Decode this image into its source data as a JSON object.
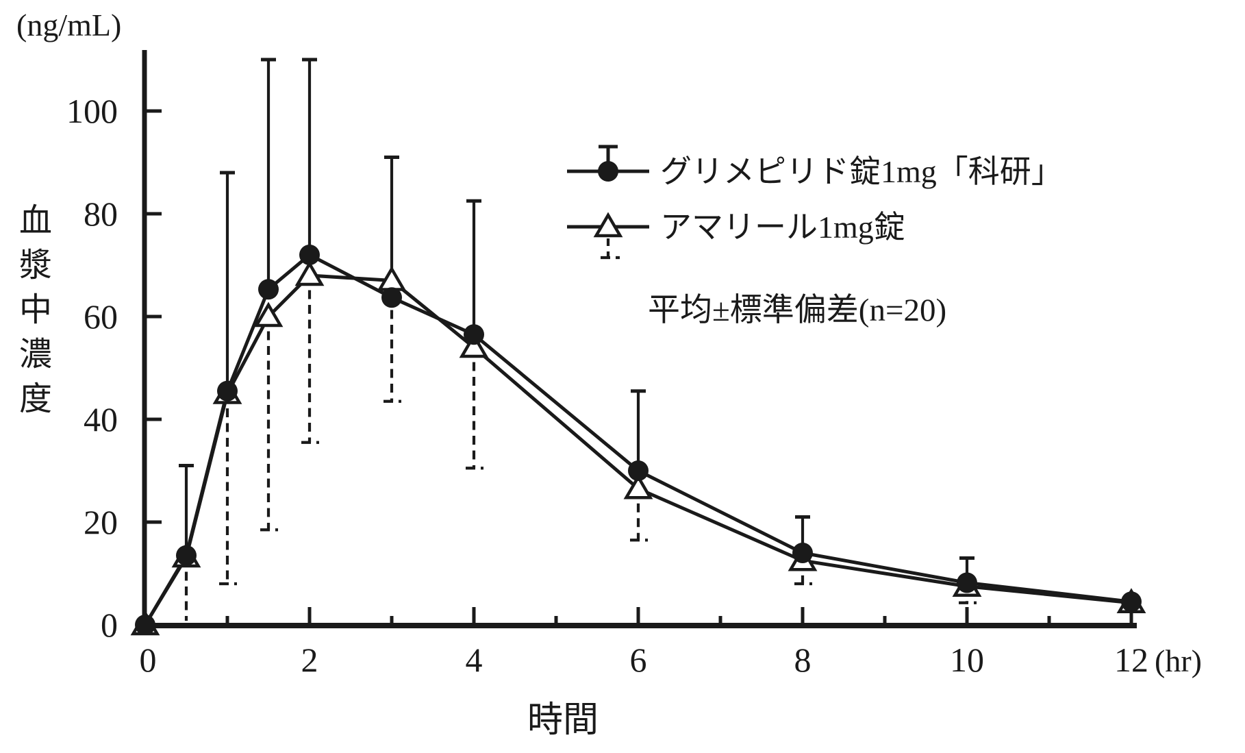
{
  "figure": {
    "y_unit": "(ng/mL)",
    "y_axis_title_chars": [
      "血",
      "漿",
      "中",
      "濃",
      "度"
    ],
    "x_axis_title": "時間",
    "x_unit": "(hr)"
  },
  "legend": {
    "series1_label": "グリメピリド錠1mg「科研」",
    "series2_label": "アマリール1mg錠",
    "note": "平均±標準偏差(n=20)"
  },
  "chart_data": {
    "type": "line",
    "title": "",
    "xlabel": "時間 (hr)",
    "ylabel": "血漿中濃度 (ng/mL)",
    "legend_position": "upper right",
    "grid": false,
    "x": [
      0,
      0.5,
      1,
      1.5,
      2,
      3,
      4,
      6,
      8,
      10,
      12
    ],
    "xlim": [
      0,
      12.15
    ],
    "ylim": [
      0,
      112
    ],
    "y_ticks": [
      0,
      20,
      40,
      60,
      80,
      100
    ],
    "x_major_ticks": [
      0,
      2,
      4,
      6,
      8,
      10,
      12
    ],
    "x_minor_ticks": [
      1,
      3,
      5,
      7,
      9,
      11
    ],
    "error_bar_note": "平均±標準偏差(n=20)",
    "series": [
      {
        "name": "グリメピリド錠1mg「科研」",
        "marker": "filled-circle",
        "error_bar_style": "solid-upward",
        "values": [
          0,
          13.5,
          45.5,
          65.3,
          72,
          63.7,
          56.5,
          30,
          14,
          8.2,
          4.5
        ],
        "sd_upper": [
          null,
          31,
          88,
          110,
          110,
          91,
          82.5,
          45.5,
          21,
          13,
          null
        ]
      },
      {
        "name": "アマリール1mg錠",
        "marker": "open-triangle",
        "error_bar_style": "dashed-downward",
        "values": [
          0,
          13.2,
          45,
          60,
          68,
          67,
          54,
          26.5,
          12.5,
          7.5,
          4.3
        ],
        "sd_lower": [
          null,
          0.8,
          8,
          18.5,
          35.5,
          43.5,
          30.5,
          16.5,
          8,
          4.3,
          null
        ]
      }
    ]
  }
}
